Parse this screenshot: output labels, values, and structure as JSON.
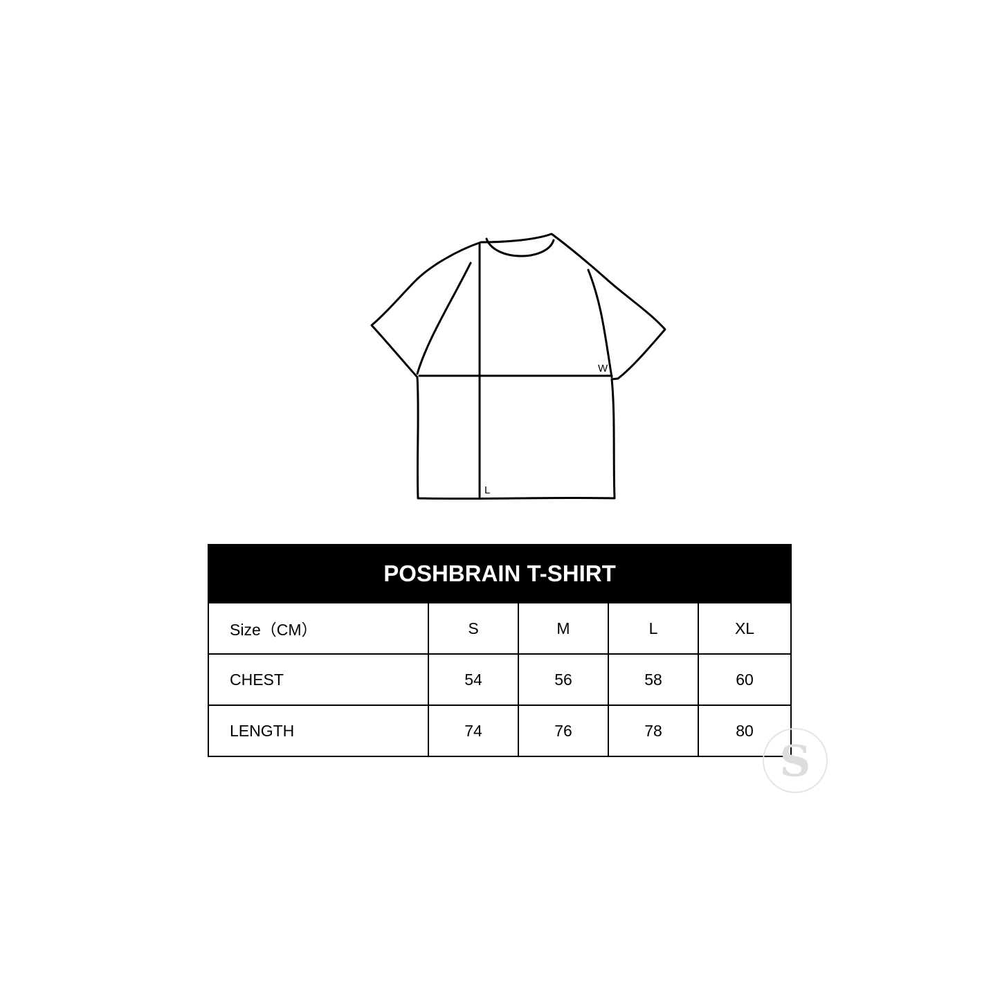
{
  "diagram": {
    "width_label": "W",
    "length_label": "L"
  },
  "table": {
    "title": "POSHBRAIN T-SHIRT",
    "header": [
      "Size（CM）",
      "S",
      "M",
      "L",
      "XL"
    ],
    "rows": [
      {
        "label": "CHEST",
        "values": [
          "54",
          "56",
          "58",
          "60"
        ]
      },
      {
        "label": "LENGTH",
        "values": [
          "74",
          "76",
          "78",
          "80"
        ]
      }
    ]
  },
  "logo": {
    "text": "S"
  }
}
